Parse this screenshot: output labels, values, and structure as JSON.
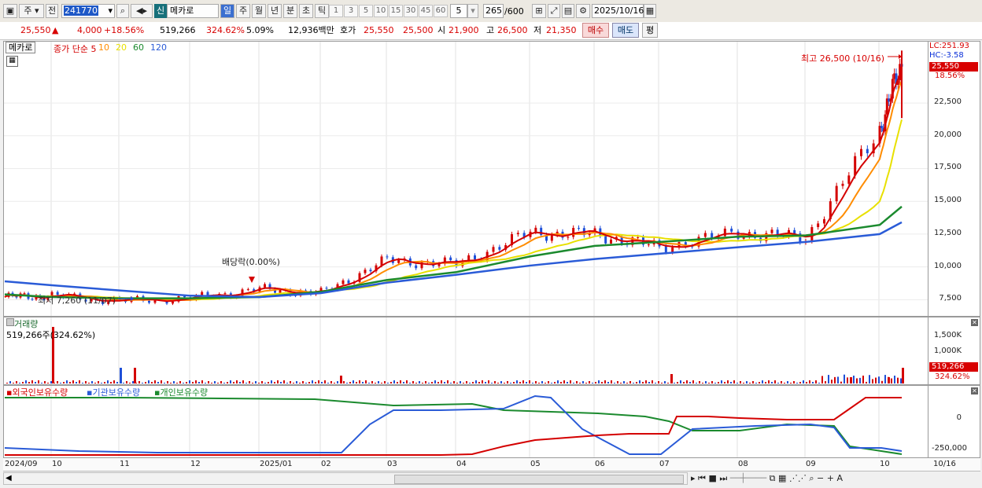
{
  "toolbar": {
    "market": "주",
    "prev": "전",
    "code": "241770",
    "new_badge": "신",
    "name": "메카로",
    "periods": [
      "일",
      "주",
      "월",
      "년",
      "분",
      "초",
      "틱"
    ],
    "intervals": [
      "1",
      "3",
      "5",
      "10",
      "15",
      "30",
      "45",
      "60"
    ],
    "interval_select": "5",
    "count": "265",
    "count_total": "/600",
    "date": "2025/10/16"
  },
  "quote": {
    "price": "25,550",
    "change": "4,000",
    "change_pct": "+18.56%",
    "volume": "519,266",
    "volume_pct": "324.62%",
    "turnover": "5.09%",
    "amount": "12,936백만",
    "hoga_label": "호가",
    "ask": "25,550",
    "bid": "25,500",
    "open_label": "시",
    "open": "21,900",
    "high_label": "고",
    "high": "26,500",
    "low_label": "저",
    "low": "21,350",
    "buy": "매수",
    "sell": "매도",
    "eval": "평"
  },
  "price_panel": {
    "name_tag": "메카로",
    "legend": [
      {
        "text": "종가 단순 5",
        "color": "#d40000"
      },
      {
        "text": "10",
        "color": "#ff8c00"
      },
      {
        "text": "20",
        "color": "#e8e000"
      },
      {
        "text": "60",
        "color": "#1b8a2e"
      },
      {
        "text": "120",
        "color": "#2a5bd7"
      }
    ],
    "lc": "LC:251.93",
    "hc": "HC:-3.58",
    "last_price": "25,550",
    "last_pct": "18.56%",
    "high_annot": "최고 26,500 (10/16)",
    "low_annot": "최저 7,260 (11/07)",
    "dividend_annot": "배당락(0.00%)",
    "y_ticks": [
      "22,500",
      "20,000",
      "17,500",
      "15,000",
      "12,500",
      "10,000",
      "7,500"
    ]
  },
  "volume_panel": {
    "title": "거래량",
    "value": "519,266주(324.62%)",
    "y_ticks": [
      "1,500K",
      "1,000K"
    ],
    "last_vol": "519,266",
    "last_pct": "324.62%"
  },
  "holdings_panel": {
    "legend": [
      {
        "text": "외국인보유수량",
        "color": "#d40000"
      },
      {
        "text": "기관보유수량",
        "color": "#2a5bd7"
      },
      {
        "text": "개인보유수량",
        "color": "#1b8a2e"
      }
    ],
    "y_ticks": [
      "0",
      "-250,000"
    ]
  },
  "x_axis": [
    "2024/09",
    "10",
    "11",
    "12",
    "2025/01",
    "02",
    "03",
    "04",
    "05",
    "06",
    "07",
    "08",
    "09",
    "10",
    "10/16"
  ],
  "chart_data": {
    "type": "line",
    "x": [
      "2024/09",
      "10",
      "11",
      "12",
      "2025/01",
      "02",
      "03",
      "04",
      "05",
      "06",
      "07",
      "08",
      "09",
      "10",
      "10/16"
    ],
    "series": [
      {
        "name": "종가",
        "values": [
          7700,
          7800,
          7400,
          7600,
          8300,
          8000,
          10500,
          10200,
          12600,
          12500,
          11500,
          12600,
          12200,
          20500,
          25550
        ]
      },
      {
        "name": "120",
        "values": [
          8900,
          8600,
          8200,
          7800,
          7700,
          8000,
          8800,
          9400,
          10100,
          10600,
          11000,
          11500,
          11900,
          12500,
          13400
        ]
      },
      {
        "name": "60",
        "values": [
          7900,
          7700,
          7600,
          7600,
          7700,
          8100,
          9000,
          9600,
          10800,
          11600,
          11900,
          12300,
          12400,
          13200,
          14600
        ]
      }
    ],
    "ylim": [
      6500,
      27000
    ],
    "high": 26500,
    "low": 7260
  }
}
